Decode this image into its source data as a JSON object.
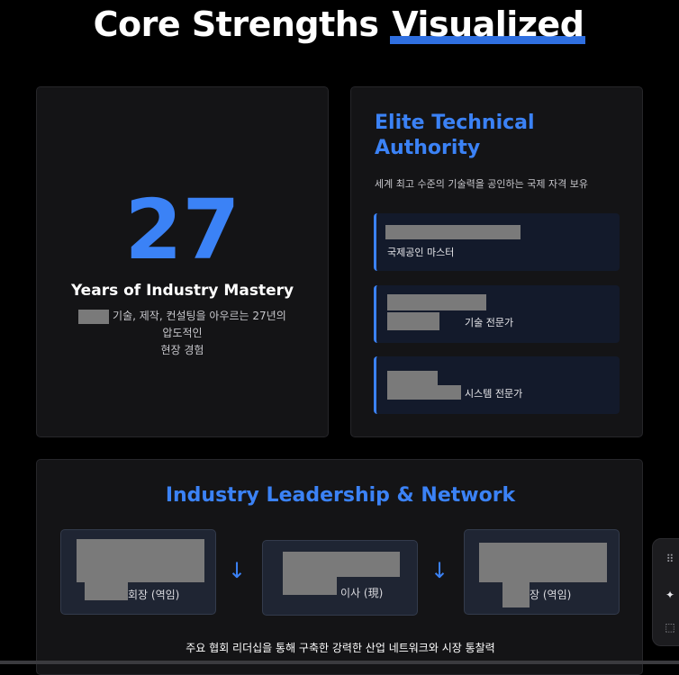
{
  "title": {
    "part1": "Core Strengths ",
    "part2": "Visualized"
  },
  "years_card": {
    "number": "27",
    "heading": "Years of Industry Mastery",
    "desc_line1": " 기술, 제작, 컨설팅을 아우르는 27년의 압도적인",
    "desc_line2": "현장 경험"
  },
  "authority_card": {
    "title_line1": "Elite Technical",
    "title_line2": "Authority",
    "subtitle": "세계 최고 수준의 기술력을 공인하는 국제 자격 보유",
    "credentials": [
      {
        "label": "국제공인 마스터"
      },
      {
        "label": "기술 전문가"
      },
      {
        "label": "시스템 전문가"
      }
    ]
  },
  "leadership_card": {
    "title": "Industry Leadership & Network",
    "roles": [
      {
        "label": "회장 (역임)"
      },
      {
        "label": "이사 (現)"
      },
      {
        "label": "장 (역임)"
      }
    ],
    "arrow": "↓",
    "footer": "주요 협회 리더십을 통해 구축한 강력한 산업 네트워크와 시장 통찰력"
  },
  "side_widget": {
    "icons": [
      "grid-icon",
      "sparkle-icon",
      "select-region-icon"
    ],
    "glyphs": [
      "⠿",
      "✦",
      "⬚"
    ]
  },
  "colors": {
    "accent": "#3b82f6",
    "background": "#000000",
    "card": "#141416"
  }
}
